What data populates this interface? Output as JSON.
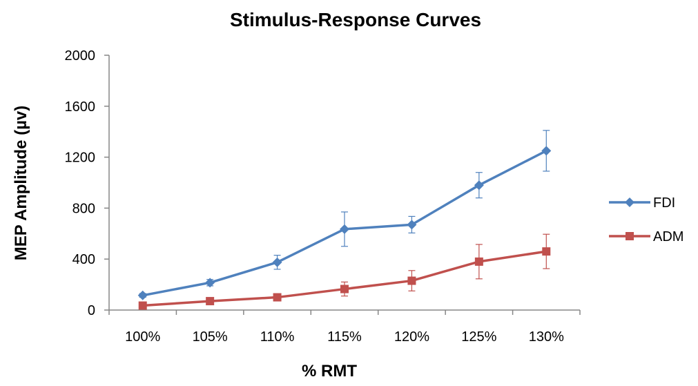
{
  "chart_data": {
    "type": "line",
    "title": "Stimulus-Response Curves",
    "xlabel": "% RMT",
    "ylabel": "MEP Amplitude (µv)",
    "categories": [
      "100%",
      "105%",
      "110%",
      "115%",
      "120%",
      "125%",
      "130%"
    ],
    "ylim": [
      0,
      2000
    ],
    "yticks": [
      0,
      400,
      800,
      1200,
      1600,
      2000
    ],
    "grid": false,
    "legend_position": "right",
    "series": [
      {
        "name": "FDI",
        "color": "#4F81BD",
        "marker": "diamond",
        "values": [
          115,
          215,
          375,
          635,
          670,
          980,
          1250
        ],
        "error": [
          15,
          25,
          55,
          135,
          65,
          100,
          160
        ]
      },
      {
        "name": "ADM",
        "color": "#C0504D",
        "marker": "square",
        "values": [
          35,
          70,
          100,
          165,
          230,
          380,
          460
        ],
        "error": [
          10,
          15,
          15,
          55,
          80,
          135,
          135
        ]
      }
    ]
  }
}
